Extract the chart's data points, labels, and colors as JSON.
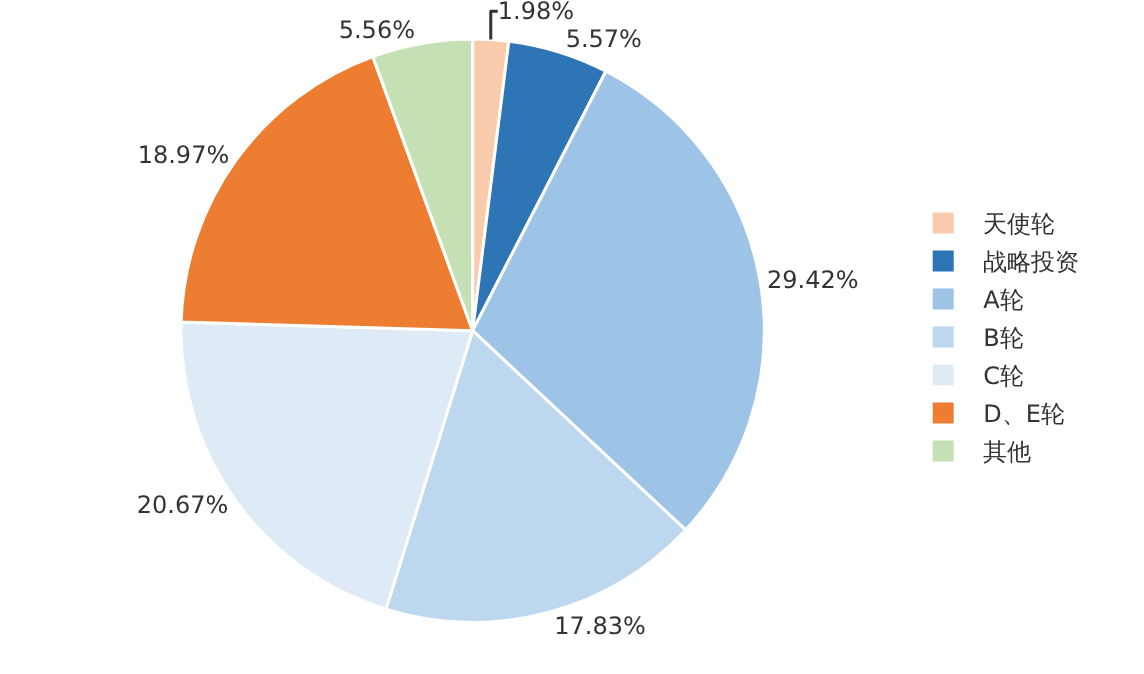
{
  "chart_data": {
    "type": "pie",
    "categories": [
      "天使轮",
      "战略投资",
      "A轮",
      "B轮",
      "C轮",
      "D、E轮",
      "其他"
    ],
    "values": [
      1.98,
      5.57,
      29.42,
      17.83,
      20.67,
      18.97,
      5.56
    ],
    "value_labels": [
      "1.98%",
      "5.57%",
      "29.42%",
      "17.83%",
      "20.67%",
      "18.97%",
      "5.56%"
    ],
    "colors": [
      "#f8cbad",
      "#2e75b6",
      "#9dc3e6",
      "#bdd7ee",
      "#deebf7",
      "#ed7d31",
      "#c5e0b4"
    ],
    "legend": "right"
  }
}
